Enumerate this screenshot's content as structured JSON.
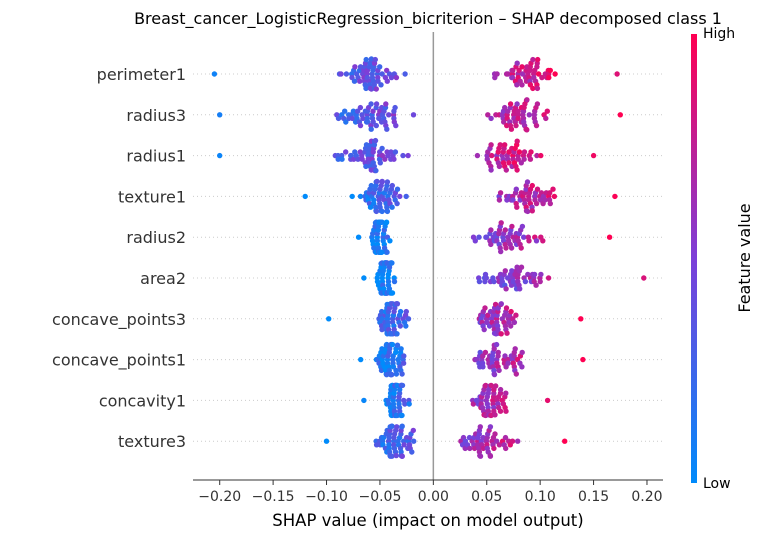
{
  "chart_data": {
    "type": "scatter",
    "subtype": "shap-beeswarm",
    "title": "Breast_cancer_LogisticRegression_bicriterion – SHAP decomposed class 1",
    "xlabel": "SHAP value (impact on model output)",
    "ylabel": "",
    "xlim": [
      -0.225,
      0.215
    ],
    "xticks": [
      -0.2,
      -0.15,
      -0.1,
      -0.05,
      0.0,
      0.05,
      0.1,
      0.15,
      0.2
    ],
    "xtick_labels": [
      "−0.20",
      "−0.15",
      "−0.10",
      "−0.05",
      "0.00",
      "0.05",
      "0.10",
      "0.15",
      "0.20"
    ],
    "grid": false,
    "zero_line": true,
    "colorbar": {
      "title": "Feature value",
      "high_label": "High",
      "low_label": "Low",
      "low_color": "#008bfb",
      "high_color": "#ff0052"
    },
    "features": [
      {
        "name": "perimeter1",
        "x_min": -0.205,
        "x_max": 0.172,
        "neg_center": -0.06,
        "pos_center": 0.085,
        "neg_spread": 0.045,
        "pos_spread": 0.04
      },
      {
        "name": "radius3",
        "x_min": -0.2,
        "x_max": 0.175,
        "neg_center": -0.06,
        "pos_center": 0.08,
        "neg_spread": 0.045,
        "pos_spread": 0.04
      },
      {
        "name": "radius1",
        "x_min": -0.2,
        "x_max": 0.15,
        "neg_center": -0.06,
        "pos_center": 0.07,
        "neg_spread": 0.045,
        "pos_spread": 0.035
      },
      {
        "name": "texture1",
        "x_min": -0.12,
        "x_max": 0.17,
        "neg_center": -0.05,
        "pos_center": 0.09,
        "neg_spread": 0.03,
        "pos_spread": 0.04
      },
      {
        "name": "radius2",
        "x_min": -0.07,
        "x_max": 0.165,
        "neg_center": -0.05,
        "pos_center": 0.07,
        "neg_spread": 0.012,
        "pos_spread": 0.045
      },
      {
        "name": "area2",
        "x_min": -0.065,
        "x_max": 0.197,
        "neg_center": -0.045,
        "pos_center": 0.07,
        "neg_spread": 0.012,
        "pos_spread": 0.05
      },
      {
        "name": "concave_points3",
        "x_min": -0.098,
        "x_max": 0.138,
        "neg_center": -0.04,
        "pos_center": 0.06,
        "neg_spread": 0.02,
        "pos_spread": 0.03
      },
      {
        "name": "concave_points1",
        "x_min": -0.068,
        "x_max": 0.14,
        "neg_center": -0.04,
        "pos_center": 0.06,
        "neg_spread": 0.018,
        "pos_spread": 0.035
      },
      {
        "name": "concavity1",
        "x_min": -0.065,
        "x_max": 0.107,
        "neg_center": -0.035,
        "pos_center": 0.055,
        "neg_spread": 0.015,
        "pos_spread": 0.025
      },
      {
        "name": "texture3",
        "x_min": -0.1,
        "x_max": 0.123,
        "neg_center": -0.035,
        "pos_center": 0.05,
        "neg_spread": 0.025,
        "pos_spread": 0.035
      }
    ]
  }
}
